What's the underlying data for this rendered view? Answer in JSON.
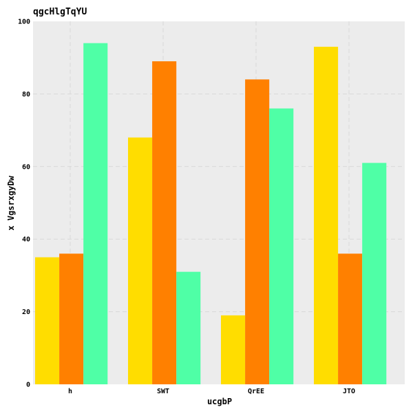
{
  "chart_data": {
    "type": "bar",
    "title": "qgcHlgTqYU",
    "xlabel": "ucgbP",
    "ylabel": "x VgsrxgyDw",
    "categories": [
      "h",
      "SWT",
      "QrEE",
      "JTO"
    ],
    "series": [
      {
        "values": [
          35,
          68,
          19,
          93
        ],
        "color": "#FFDD00"
      },
      {
        "values": [
          36,
          89,
          84,
          36
        ],
        "color": "#FF8000"
      },
      {
        "values": [
          94,
          31,
          76,
          61
        ],
        "color": "#4FFFA6"
      }
    ],
    "ylim": [
      0,
      100
    ],
    "yticks": [
      0,
      20,
      40,
      60,
      80,
      100
    ],
    "grid": true,
    "legend": "none",
    "plot_background": "#ECECEC",
    "grid_color": "#D8D8D8"
  }
}
